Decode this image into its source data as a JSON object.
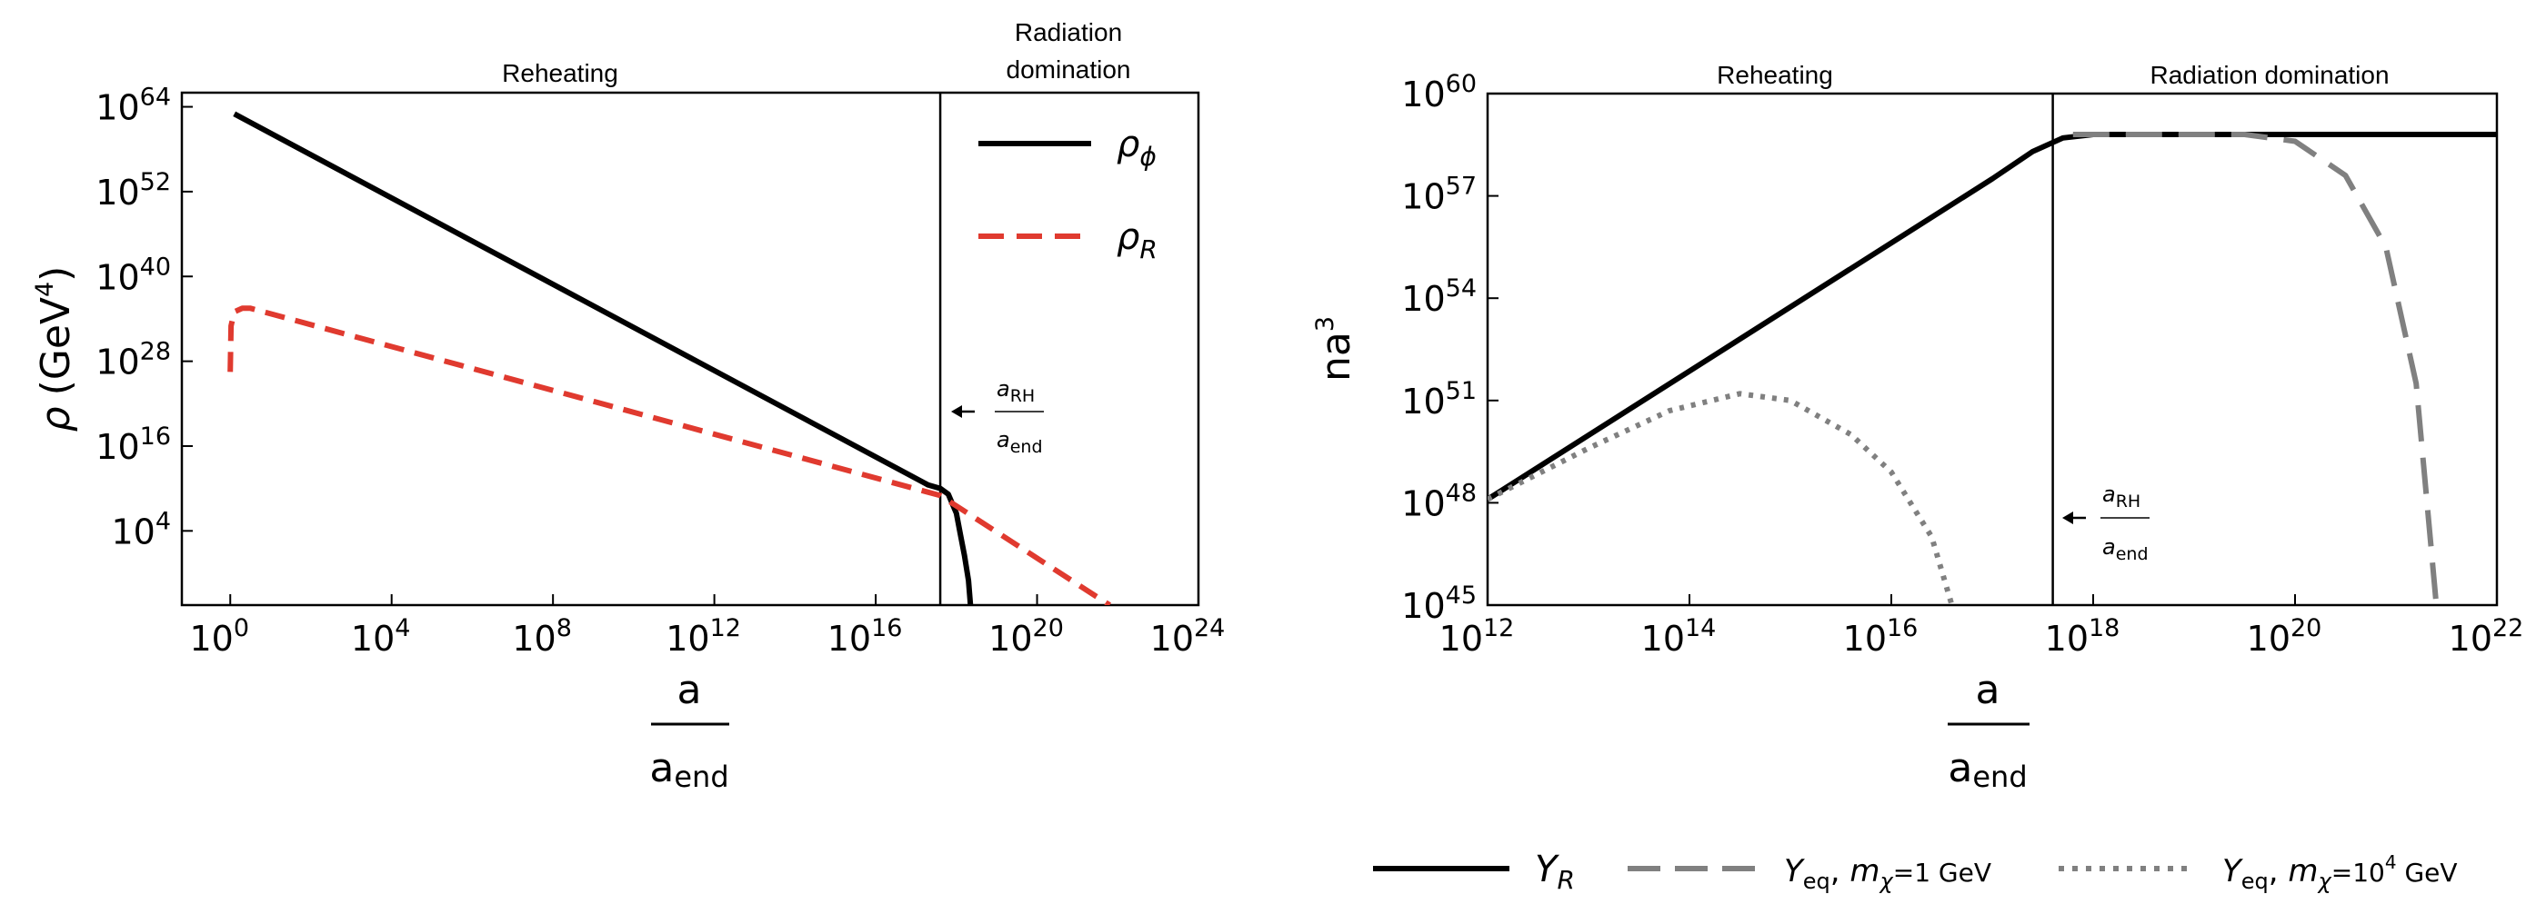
{
  "chart_data": [
    {
      "type": "line",
      "id": "left",
      "xscale": "log10",
      "yscale": "log10",
      "xlim_exp": [
        -1.2,
        24
      ],
      "ylim_exp": [
        -6.5,
        66
      ],
      "x_ticks": [
        {
          "base": "10",
          "exp": "0",
          "pos": 0
        },
        {
          "base": "10",
          "exp": "4",
          "pos": 4
        },
        {
          "base": "10",
          "exp": "8",
          "pos": 8
        },
        {
          "base": "10",
          "exp": "12",
          "pos": 12
        },
        {
          "base": "10",
          "exp": "16",
          "pos": 16
        },
        {
          "base": "10",
          "exp": "20",
          "pos": 20
        },
        {
          "base": "10",
          "exp": "24",
          "pos": 24
        }
      ],
      "y_ticks": [
        {
          "base": "10",
          "exp": "4",
          "pos": 4
        },
        {
          "base": "10",
          "exp": "16",
          "pos": 16
        },
        {
          "base": "10",
          "exp": "28",
          "pos": 28
        },
        {
          "base": "10",
          "exp": "40",
          "pos": 40
        },
        {
          "base": "10",
          "exp": "52",
          "pos": 52
        },
        {
          "base": "10",
          "exp": "64",
          "pos": 64
        }
      ],
      "xlabel": {
        "num": "a",
        "den": "a",
        "den_sub": "end"
      },
      "ylabel": {
        "sym": "ρ",
        "unit": "(GeV",
        "unit_exp": "4",
        "close": ")"
      },
      "regions": [
        "Reheating",
        "Radiation",
        "domination"
      ],
      "vline_x_exp": 17.6,
      "annotation": {
        "num": "a",
        "num_sub": "RH",
        "den": "a",
        "den_sub": "end"
      },
      "series": [
        {
          "name": "ρ",
          "sub": "ϕ",
          "color": "#000000",
          "dash": "solid",
          "points": [
            [
              0.1,
              63
            ],
            [
              17.3,
              10.5
            ],
            [
              17.6,
              10
            ],
            [
              17.8,
              9.2
            ],
            [
              18.0,
              6.5
            ],
            [
              18.1,
              3.5
            ],
            [
              18.2,
              0.5
            ],
            [
              18.3,
              -3
            ],
            [
              18.35,
              -6.5
            ]
          ]
        },
        {
          "name": "ρ",
          "sub": "R",
          "color": "#e03a2f",
          "dash": "dashed",
          "points": [
            [
              0.0,
              26.5
            ],
            [
              0.02,
              33
            ],
            [
              0.1,
              35
            ],
            [
              0.3,
              35.5
            ],
            [
              0.5,
              35.5
            ],
            [
              17.6,
              9
            ],
            [
              21.8,
              -6.5
            ]
          ]
        }
      ]
    },
    {
      "type": "line",
      "id": "right",
      "xscale": "log10",
      "yscale": "log10",
      "xlim_exp": [
        12,
        22
      ],
      "ylim_exp": [
        45,
        60
      ],
      "x_ticks": [
        {
          "base": "10",
          "exp": "12",
          "pos": 12
        },
        {
          "base": "10",
          "exp": "14",
          "pos": 14
        },
        {
          "base": "10",
          "exp": "16",
          "pos": 16
        },
        {
          "base": "10",
          "exp": "18",
          "pos": 18
        },
        {
          "base": "10",
          "exp": "20",
          "pos": 20
        },
        {
          "base": "10",
          "exp": "22",
          "pos": 22
        }
      ],
      "y_ticks": [
        {
          "base": "10",
          "exp": "45",
          "pos": 45
        },
        {
          "base": "10",
          "exp": "48",
          "pos": 48
        },
        {
          "base": "10",
          "exp": "51",
          "pos": 51
        },
        {
          "base": "10",
          "exp": "54",
          "pos": 54
        },
        {
          "base": "10",
          "exp": "57",
          "pos": 57
        },
        {
          "base": "10",
          "exp": "60",
          "pos": 60
        }
      ],
      "xlabel": {
        "num": "a",
        "den": "a",
        "den_sub": "end"
      },
      "ylabel": {
        "sym": "na",
        "unit_exp": "3"
      },
      "regions": [
        "Reheating",
        "Radiation domination"
      ],
      "vline_x_exp": 17.6,
      "annotation": {
        "num": "a",
        "num_sub": "RH",
        "den": "a",
        "den_sub": "end"
      },
      "series": [
        {
          "name": "Y",
          "sub": "R",
          "color": "#000000",
          "dash": "solid",
          "points": [
            [
              12,
              48.1
            ],
            [
              17.0,
              57.5
            ],
            [
              17.4,
              58.3
            ],
            [
              17.7,
              58.7
            ],
            [
              18,
              58.8
            ],
            [
              22,
              58.8
            ]
          ]
        },
        {
          "name": "Y",
          "sub": "eq",
          "mass": "m",
          "mass_sub": "χ",
          "mass_val": "=1 GeV",
          "color": "#808080",
          "dash": "long-dashed",
          "points": [
            [
              17.8,
              58.8
            ],
            [
              19.5,
              58.8
            ],
            [
              20.0,
              58.6
            ],
            [
              20.5,
              57.6
            ],
            [
              20.9,
              55.5
            ],
            [
              21.2,
              51.5
            ],
            [
              21.4,
              45
            ]
          ]
        },
        {
          "name": "Y",
          "sub": "eq",
          "mass": "m",
          "mass_sub": "χ",
          "mass_val": "=10",
          "mass_exp": "4",
          "mass_unit": " GeV",
          "color": "#808080",
          "dash": "dotted",
          "points": [
            [
              12,
              48.1
            ],
            [
              13.0,
              49.6
            ],
            [
              13.8,
              50.7
            ],
            [
              14.5,
              51.2
            ],
            [
              15.0,
              51.0
            ],
            [
              15.6,
              50.0
            ],
            [
              16.0,
              48.9
            ],
            [
              16.4,
              47.0
            ],
            [
              16.6,
              45
            ]
          ]
        }
      ]
    }
  ]
}
